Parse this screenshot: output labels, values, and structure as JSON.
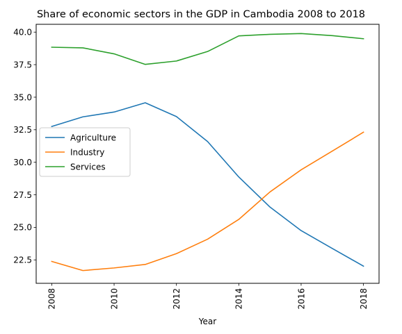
{
  "chart_data": {
    "type": "line",
    "title": "Share of economic sectors in the GDP in Cambodia 2008 to 2018",
    "xlabel": "Year",
    "ylabel": "",
    "x": [
      2008,
      2009,
      2010,
      2011,
      2012,
      2013,
      2014,
      2015,
      2016,
      2017,
      2018
    ],
    "xticks": [
      2008,
      2010,
      2012,
      2014,
      2016,
      2018
    ],
    "xlim": [
      2007.5,
      2018.5
    ],
    "yticks": [
      22.5,
      25.0,
      27.5,
      30.0,
      32.5,
      35.0,
      37.5,
      40.0
    ],
    "ytick_labels": [
      "22.5",
      "25.0",
      "27.5",
      "30.0",
      "32.5",
      "35.0",
      "37.5",
      "40.0"
    ],
    "ylim": [
      20.7,
      40.6
    ],
    "grid": false,
    "legend_position": "center-left",
    "series": [
      {
        "name": "Agriculture",
        "color": "#1f77b4",
        "values": [
          32.75,
          33.49,
          33.86,
          34.57,
          33.51,
          31.59,
          28.87,
          26.56,
          24.75,
          23.38,
          22.02
        ]
      },
      {
        "name": "Industry",
        "color": "#ff7f0e",
        "values": [
          22.38,
          21.68,
          21.88,
          22.15,
          22.98,
          24.09,
          25.61,
          27.72,
          29.42,
          30.86,
          32.31
        ]
      },
      {
        "name": "Services",
        "color": "#2ca02c",
        "values": [
          38.84,
          38.79,
          38.33,
          37.52,
          37.78,
          38.51,
          39.71,
          39.83,
          39.89,
          39.73,
          39.49
        ]
      }
    ]
  }
}
